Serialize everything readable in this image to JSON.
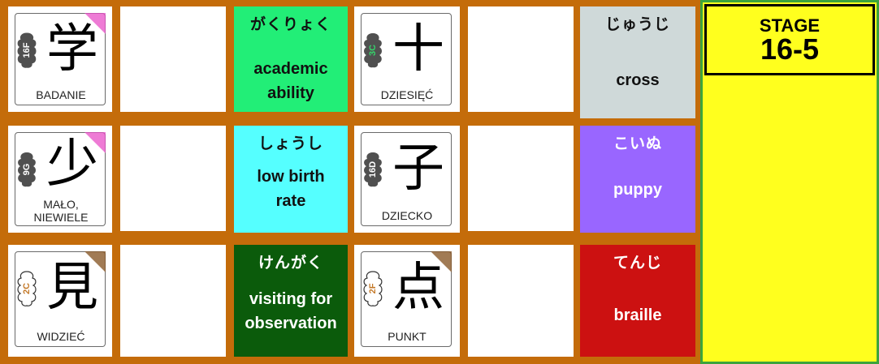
{
  "stage": {
    "label": "STAGE",
    "number": "16-5"
  },
  "kanji_cards": [
    {
      "kanji": "学",
      "code": "16F",
      "meaning": "BADANIE",
      "corner": "#e84fc7",
      "badge": "#505050",
      "code_color": "#ffffff"
    },
    {
      "kanji": "十",
      "code": "3C",
      "meaning": "DZIESIĘĆ",
      "corner": "#ffffff",
      "badge": "#505050",
      "code_color": "#36d36b"
    },
    {
      "kanji": "少",
      "code": "9G",
      "meaning": "MAŁO, NIEWIELE",
      "corner": "#e84fc7",
      "badge": "#505050",
      "code_color": "#ffffff"
    },
    {
      "kanji": "子",
      "code": "16D",
      "meaning": "DZIECKO",
      "corner": "#ffffff",
      "badge": "#505050",
      "code_color": "#ffffff"
    },
    {
      "kanji": "見",
      "code": "2C",
      "meaning": "WIDZIEĆ",
      "corner": "#8a5a2a",
      "badge": "#ffffff",
      "code_color": "#c47a2a"
    },
    {
      "kanji": "点",
      "code": "2F",
      "meaning": "PUNKT",
      "corner": "#8a5a2a",
      "badge": "#ffffff",
      "code_color": "#c47a2a"
    }
  ],
  "answer_cards": [
    {
      "kana": "がくりょく",
      "english": "academic ability",
      "bg": "#22ee77",
      "text_color": "#111111"
    },
    {
      "kana": "じゅうじ",
      "english": "cross",
      "bg": "#cfd9d9",
      "text_color": "#111111"
    },
    {
      "kana": "しょうし",
      "english": "low birth rate",
      "bg": "#55ffff",
      "text_color": "#111111"
    },
    {
      "kana": "こいぬ",
      "english": "puppy",
      "bg": "#9966ff",
      "text_color": "#ffffff"
    },
    {
      "kana": "けんがく",
      "english": "visiting for observation",
      "bg": "#0b5b0b",
      "text_color": "#ffffff"
    },
    {
      "kana": "てんじ",
      "english": "braille",
      "bg": "#cc1111",
      "text_color": "#ffffff"
    }
  ],
  "colors": {
    "board": "#c46c0a",
    "panel": "#ffff1e",
    "panel_border": "#3ca33c"
  }
}
